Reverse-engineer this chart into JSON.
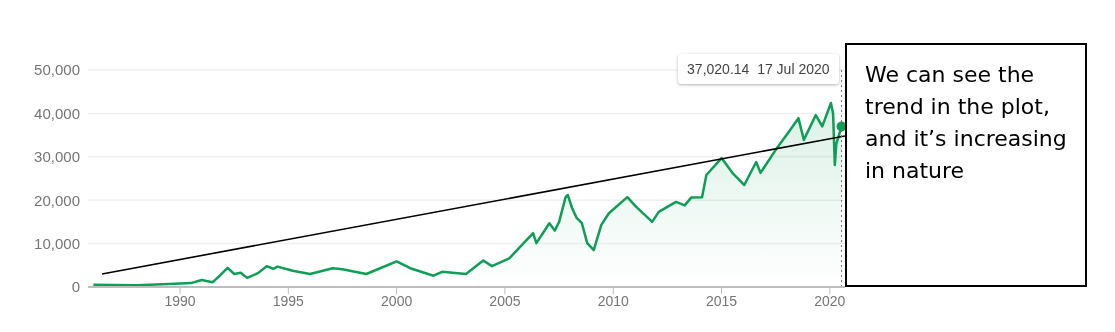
{
  "chart_data": {
    "type": "area",
    "annotations": [
      "37,020.14  17 Jul 2020",
      "We can see the trend in the plot, and it’s increasing in nature"
    ],
    "xlim": [
      1985.75,
      2020.7
    ],
    "xticks": [
      1990,
      1995,
      2000,
      2005,
      2010,
      2015,
      2020
    ],
    "ylim": [
      0,
      50000
    ],
    "yticks": [
      {
        "value": 0,
        "label": "0"
      },
      {
        "value": 10000,
        "label": "10,000"
      },
      {
        "value": 20000,
        "label": "20,000"
      },
      {
        "value": 30000,
        "label": "30,000"
      },
      {
        "value": 40000,
        "label": "40,000"
      },
      {
        "value": 50000,
        "label": "50,000"
      }
    ],
    "grid": "y",
    "legend": false,
    "ref_lines": [
      {
        "axis": "x",
        "value": 2020.54,
        "label": null,
        "color": "#757575",
        "line_style": "dotted"
      }
    ],
    "series": [
      {
        "color": "#0f9d58",
        "x": [
          1986.0,
          1988.0,
          1989.5,
          1990.5,
          1991.0,
          1991.5,
          1991.7,
          1992.2,
          1992.5,
          1992.8,
          1993.1,
          1993.6,
          1994.0,
          1994.3,
          1994.5,
          1995.2,
          1996.0,
          1997.05,
          1997.5,
          1998.6,
          2000.0,
          2000.7,
          2001.7,
          2002.1,
          2003.2,
          2004.0,
          2004.4,
          2005.2,
          2006.3,
          2006.45,
          2007.05,
          2007.3,
          2007.5,
          2007.8,
          2007.9,
          2008.1,
          2008.3,
          2008.55,
          2008.8,
          2009.1,
          2009.45,
          2009.8,
          2010.65,
          2011.05,
          2011.8,
          2012.1,
          2012.9,
          2013.3,
          2013.6,
          2014.1,
          2014.3,
          2015.0,
          2015.5,
          2016.05,
          2016.6,
          2016.8,
          2017.5,
          2018.1,
          2018.55,
          2018.8,
          2019.35,
          2019.65,
          2020.05,
          2020.15,
          2020.23,
          2020.3,
          2020.54
        ],
        "values": [
          500,
          400,
          700,
          900,
          1600,
          1100,
          2000,
          4400,
          3000,
          3300,
          2100,
          3200,
          4800,
          4200,
          4700,
          3750,
          3000,
          4300,
          4100,
          3000,
          5900,
          4200,
          2600,
          3500,
          3000,
          6100,
          4800,
          6600,
          12400,
          10100,
          14700,
          13000,
          15000,
          20700,
          21200,
          18200,
          16000,
          14700,
          10100,
          8500,
          14300,
          17000,
          20700,
          18500,
          15000,
          17300,
          19600,
          18800,
          20600,
          20700,
          25800,
          29700,
          26300,
          23500,
          28800,
          26300,
          31600,
          35700,
          38900,
          33900,
          39600,
          37000,
          42400,
          40000,
          28100,
          33000,
          37000
        ]
      },
      {
        "type": "line",
        "color": "#000000",
        "x": [
          1986.4,
          2020.7
        ],
        "values": [
          3000,
          34800
        ]
      }
    ]
  }
}
